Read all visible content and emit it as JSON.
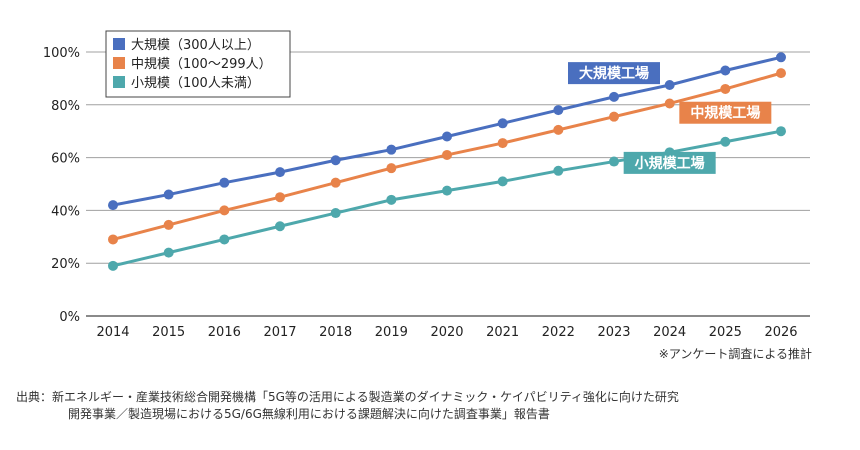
{
  "chart_data": {
    "type": "line",
    "x": [
      "2014",
      "2015",
      "2016",
      "2017",
      "2018",
      "2019",
      "2020",
      "2021",
      "2022",
      "2023",
      "2024",
      "2025",
      "2026"
    ],
    "y_ticks": [
      "0%",
      "20%",
      "40%",
      "60%",
      "80%",
      "100%"
    ],
    "ylim": [
      0,
      100
    ],
    "grid": true,
    "legend_position": "top-left",
    "series": [
      {
        "name": "大規模（300人以上）",
        "color": "#4a6fbf",
        "values": [
          42,
          46,
          50.5,
          54.5,
          59,
          63,
          68,
          73,
          78,
          83,
          87.5,
          93,
          98
        ]
      },
      {
        "name": "中規模（100〜299人）",
        "color": "#e8834a",
        "values": [
          29,
          34.5,
          40,
          45,
          50.5,
          56,
          61,
          65.5,
          70.5,
          75.5,
          80.5,
          86,
          92
        ]
      },
      {
        "name": "小規模（100人未満）",
        "color": "#4ea8ac",
        "values": [
          19,
          24,
          29,
          34,
          39,
          44,
          47.5,
          51,
          55,
          58.5,
          62,
          66,
          70
        ]
      }
    ],
    "annotations": [
      {
        "text": "大規模工場",
        "color": "#4a6fbf",
        "x": "2023",
        "y": 92
      },
      {
        "text": "中規模工場",
        "color": "#e8834a",
        "x": "2025",
        "y": 77
      },
      {
        "text": "小規模工場",
        "color": "#4ea8ac",
        "x": "2024",
        "y": 58
      }
    ]
  },
  "footnote": "※アンケート調査による推計",
  "source": {
    "line1": "出典：新エネルギー・産業技術総合開発機構「5G等の活用による製造業のダイナミック・ケイパビリティ強化に向けた研究",
    "line2": "開発事業／製造現場における5G/6G無線利用における課題解決に向けた調査事業」報告書"
  }
}
